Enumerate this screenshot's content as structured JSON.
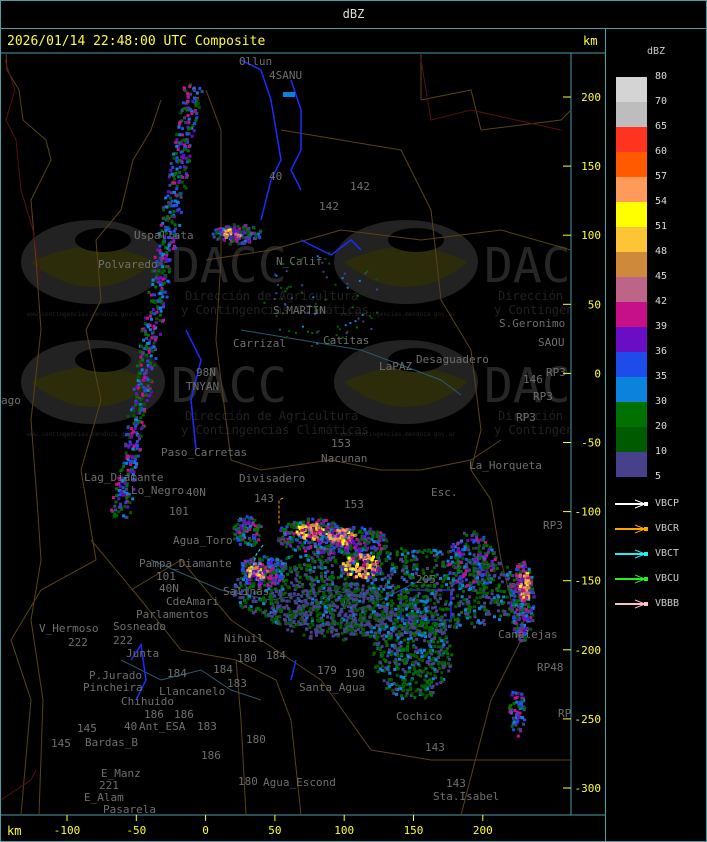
{
  "window": {
    "title": "dBZ"
  },
  "header": {
    "timestamp": "2026/01/14 22:48:00 UTC Composite",
    "km_label_top": "km",
    "km_label_bottom": "km"
  },
  "axes": {
    "y_ticks": [
      "200",
      "150",
      "100",
      "50",
      "0",
      "-50",
      "-100",
      "-150",
      "-200",
      "-250",
      "-300"
    ],
    "x_ticks": [
      "-100",
      "-50",
      "0",
      "50",
      "100",
      "150",
      "200"
    ]
  },
  "legend": {
    "unit": "dBZ",
    "bins": [
      {
        "label": "80",
        "color": "#d4d4d4"
      },
      {
        "label": "70",
        "color": "#bdbdbd"
      },
      {
        "label": "65",
        "color": "#ff3320"
      },
      {
        "label": "60",
        "color": "#ff5a00"
      },
      {
        "label": "57",
        "color": "#ff9a5a"
      },
      {
        "label": "54",
        "color": "#ffff00"
      },
      {
        "label": "51",
        "color": "#fbc535"
      },
      {
        "label": "48",
        "color": "#cf893a"
      },
      {
        "label": "45",
        "color": "#bc6589"
      },
      {
        "label": "42",
        "color": "#c5108a"
      },
      {
        "label": "39",
        "color": "#6a0ec6"
      },
      {
        "label": "36",
        "color": "#1d4cea"
      },
      {
        "label": "35",
        "color": "#0b82dc"
      },
      {
        "label": "30",
        "color": "#007000"
      },
      {
        "label": "20",
        "color": "#005a00"
      },
      {
        "label": "10",
        "color": "#47408c"
      },
      {
        "label": "5",
        "color": ""
      }
    ],
    "radars": [
      {
        "name": "VBCP",
        "color": "#ffffff"
      },
      {
        "name": "VBCR",
        "color": "#ffa500"
      },
      {
        "name": "VBCT",
        "color": "#20f0f0"
      },
      {
        "name": "VBCU",
        "color": "#20f020"
      },
      {
        "name": "VBBB",
        "color": "#ffc0cb"
      }
    ]
  },
  "watermark": {
    "brand": "DACC",
    "line1": "Dirección de Agricultura",
    "line2": "y Contingencias Climáticas",
    "url": "www.contingencias.mendoza.gov.ar"
  },
  "map_labels": [
    "Ollun",
    "4SANU",
    "40",
    "142",
    "142",
    "Uspallata",
    "Polvaredo",
    "N_Calif",
    "S.MARTIN",
    "Carrizal",
    "Catitas",
    "LaPAZ",
    "Desaguadero",
    "S.Geronimo",
    "SAOU",
    "146",
    "RP3",
    "RP3",
    "RP3",
    "ago",
    "Paso_Carretas",
    "Lag_Diamante",
    "Lo_Negro",
    "Divisadero",
    "153",
    "Nacunan",
    "La_Horqueta",
    "Esc.",
    "RP3",
    "143",
    "153",
    "40N",
    "101",
    "Agua_Toro",
    "Pampa_Diamante",
    "101",
    "40N",
    "Salinas",
    "CdeAmari",
    "Parlamentos",
    "Sosneado",
    "Nihuil",
    "V_Hermoso",
    "222",
    "222",
    "Junta",
    "180",
    "184",
    "184",
    "P.Jurado",
    "Pincheira",
    "184",
    "183",
    "Llancanelo",
    "Chihuido",
    "186",
    "186",
    "40",
    "Ant_ESA",
    "183",
    "145",
    "145",
    "Bardas_B",
    "180",
    "186",
    "E_Manz",
    "221",
    "E_Alam",
    "Pasarela",
    "180",
    "Agua_Escond",
    "179",
    "190",
    "Santa_Agua",
    "Cochico",
    "143",
    "143",
    "Sta.Isabel",
    "205",
    "Canalejas",
    "RP48",
    "RP",
    "TNYAN",
    "98N"
  ]
}
